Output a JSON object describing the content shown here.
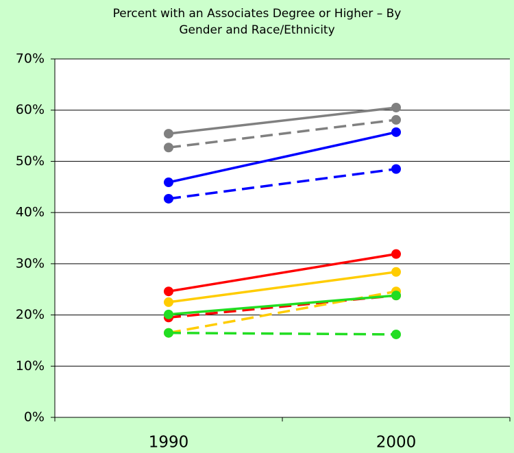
{
  "chart_data": {
    "type": "line",
    "title": "Percent with an Associates Degree or Higher – By Gender and Race/Ethnicity",
    "categories": [
      "1990",
      "2000"
    ],
    "series": [
      {
        "color": "#808080",
        "dashed": false,
        "values": [
          55.4,
          60.5
        ]
      },
      {
        "color": "#808080",
        "dashed": true,
        "values": [
          52.7,
          58.1
        ]
      },
      {
        "color": "#0000ff",
        "dashed": false,
        "values": [
          45.9,
          55.7
        ]
      },
      {
        "color": "#0000ff",
        "dashed": true,
        "values": [
          42.7,
          48.5
        ]
      },
      {
        "color": "#ff0000",
        "dashed": false,
        "values": [
          24.6,
          31.9
        ]
      },
      {
        "color": "#ff0000",
        "dashed": true,
        "values": [
          19.5,
          23.8
        ]
      },
      {
        "color": "#ffcc00",
        "dashed": false,
        "values": [
          22.5,
          28.4
        ]
      },
      {
        "color": "#ffcc00",
        "dashed": true,
        "values": [
          16.5,
          24.6
        ]
      },
      {
        "color": "#22dd22",
        "dashed": false,
        "values": [
          20.1,
          23.8
        ]
      },
      {
        "color": "#22dd22",
        "dashed": true,
        "values": [
          16.5,
          16.2
        ]
      }
    ],
    "ylim": [
      0,
      70
    ],
    "yticks": [
      {
        "value": 0,
        "label": "0%"
      },
      {
        "value": 10,
        "label": "10%"
      },
      {
        "value": 20,
        "label": "20%"
      },
      {
        "value": 30,
        "label": "30%"
      },
      {
        "value": 40,
        "label": "40%"
      },
      {
        "value": 50,
        "label": "50%"
      },
      {
        "value": 60,
        "label": "60%"
      },
      {
        "value": 70,
        "label": "70%"
      }
    ],
    "grid": true
  }
}
